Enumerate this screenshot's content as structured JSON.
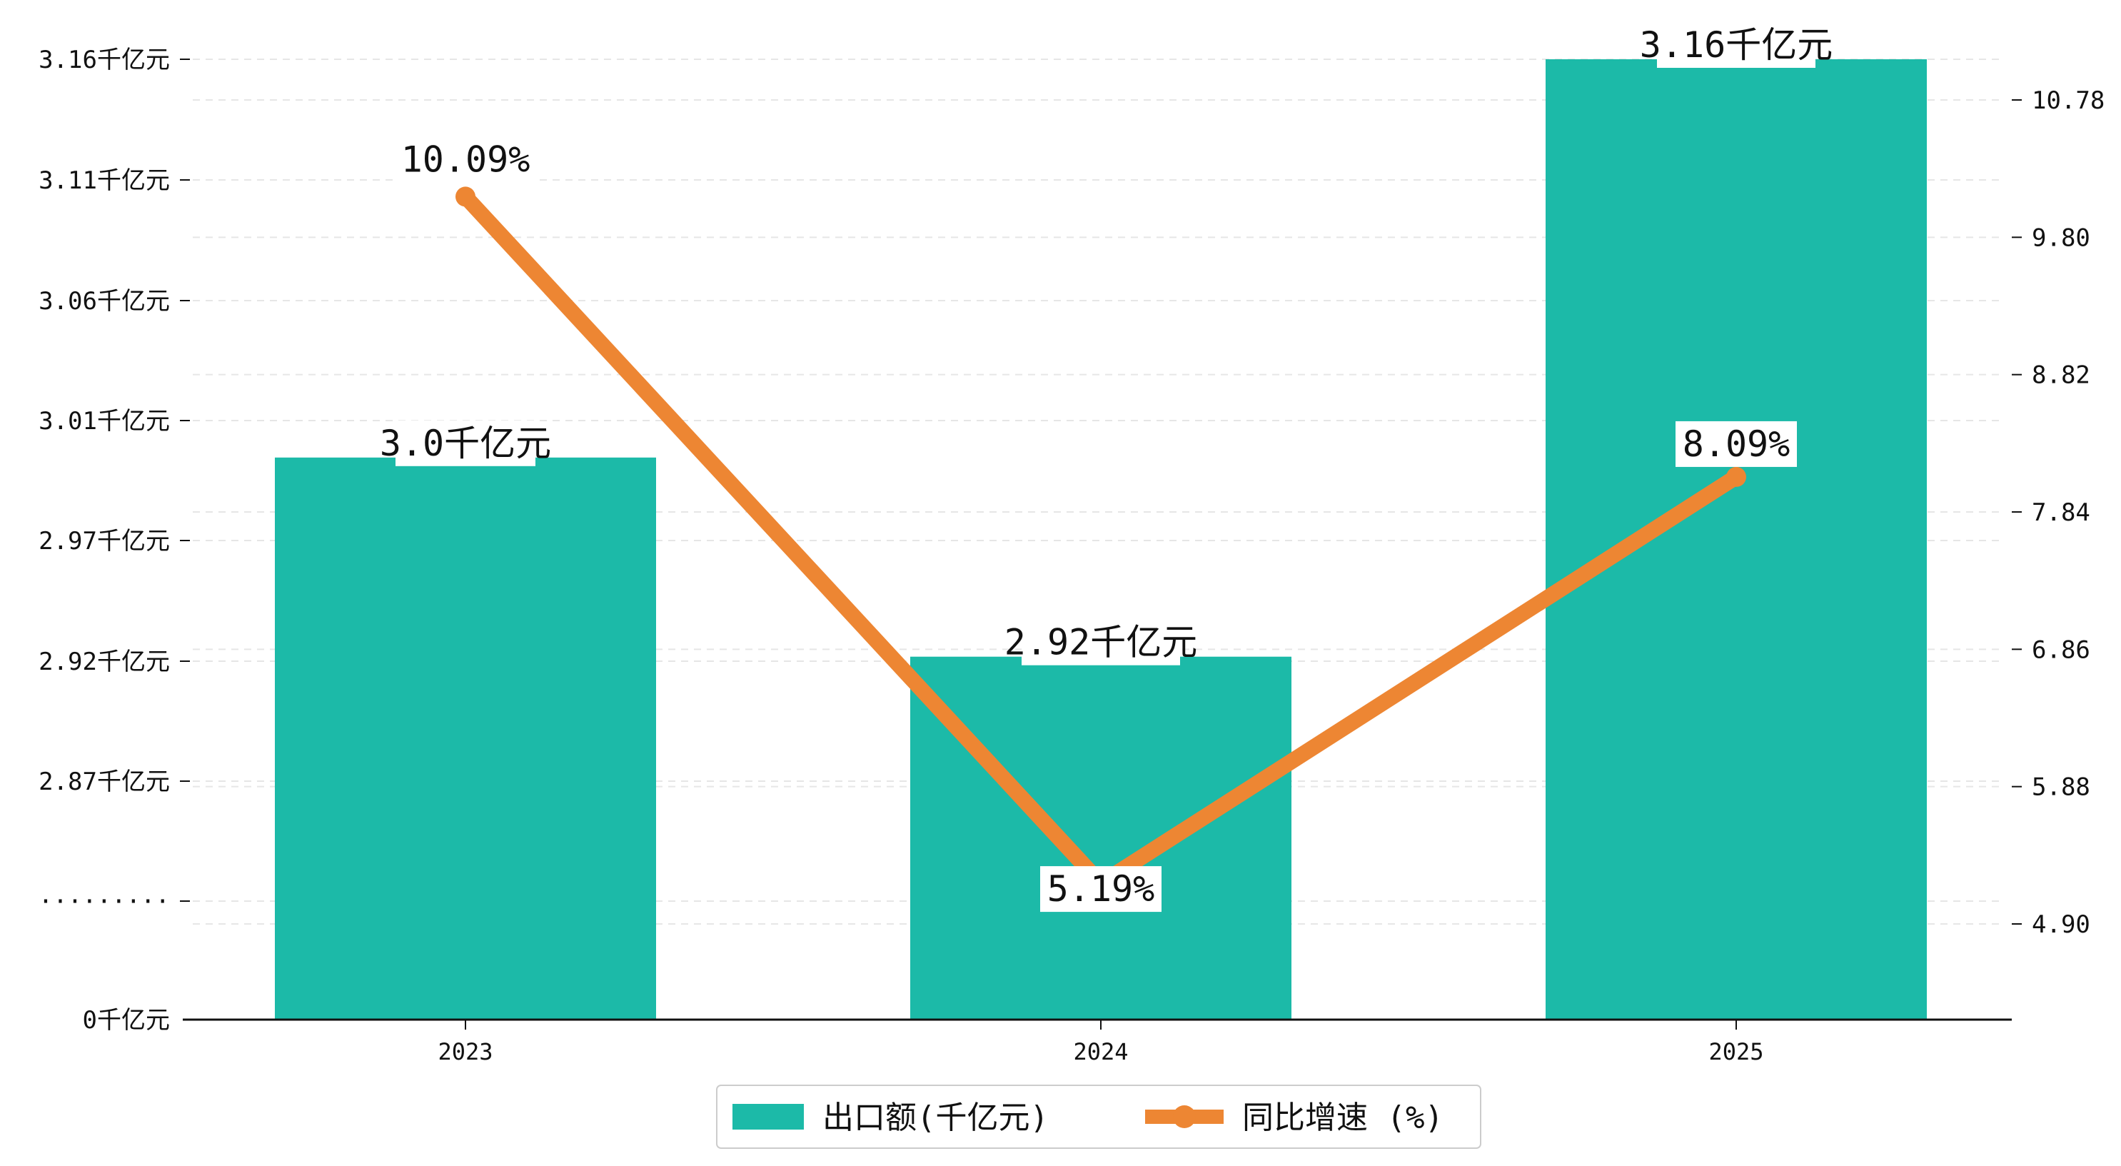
{
  "chart_data": {
    "type": "bar",
    "categories": [
      "2023",
      "2024",
      "2025"
    ],
    "series": [
      {
        "name": "出口额(千亿元)",
        "kind": "bar",
        "axis": "left",
        "color": "#1cbaa8",
        "values": [
          3.0,
          2.92,
          3.16
        ],
        "labels": [
          "3.0千亿元",
          "2.92千亿元",
          "3.16千亿元"
        ]
      },
      {
        "name": "同比增速 (%)",
        "kind": "line",
        "axis": "right",
        "color": "#ed8633",
        "values": [
          10.09,
          5.19,
          8.09
        ],
        "labels": [
          "10.09%",
          "5.19%",
          "8.09%"
        ]
      }
    ],
    "y_left": {
      "tick_labels": [
        "0千亿元",
        "·········",
        "2.87千亿元",
        "2.92千亿元",
        "2.97千亿元",
        "3.01千亿元",
        "3.06千亿元",
        "3.11千亿元",
        "3.16千亿元"
      ],
      "broken_axis": true
    },
    "y_right": {
      "ticks": [
        4.9,
        5.88,
        6.86,
        7.84,
        8.82,
        9.8,
        10.78
      ],
      "tick_labels": [
        "4.90",
        "5.88",
        "6.86",
        "7.84",
        "8.82",
        "9.80",
        "10.78"
      ],
      "ylim": [
        4.2,
        10.93
      ]
    },
    "grid": "horizontal-dashed",
    "legend_position": "bottom-center"
  }
}
